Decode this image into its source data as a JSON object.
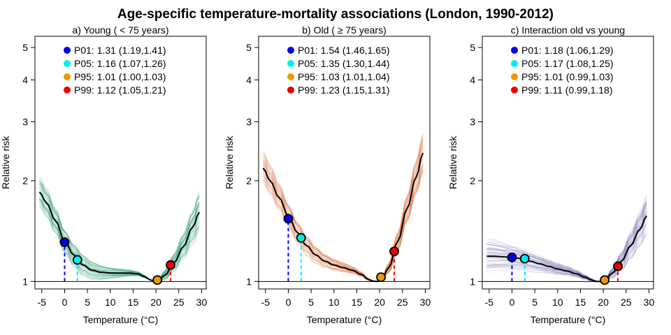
{
  "chart_data": {
    "title": "Age-specific temperature-mortality associations (London, 1990-2012)",
    "xlabel": "Temperature (°C)",
    "ylabel": "Relative risk",
    "x_ticks": [
      -5,
      0,
      5,
      10,
      15,
      20,
      25,
      30
    ],
    "y_ticks": [
      1,
      2,
      3,
      4,
      5
    ],
    "xlim": [
      -6.5,
      31
    ],
    "ylim": [
      0.95,
      5.4
    ],
    "y_scale": "log",
    "reference_line": 1,
    "percentile_colors": {
      "P01": "#0000ee",
      "P05": "#00eeee",
      "P95": "#ee9a00",
      "P99": "#ee0000"
    },
    "panels": [
      {
        "title": "a) Young ( < 75 years)",
        "type": "line",
        "ensemble_color": "#2e9b6e",
        "x": [
          -5.5,
          -4,
          -2,
          0,
          2,
          4,
          6,
          8,
          10,
          12,
          14,
          16,
          17.5,
          18.5,
          19.5,
          20.5,
          22,
          24,
          26,
          28,
          29.5
        ],
        "y": [
          1.85,
          1.72,
          1.52,
          1.32,
          1.2,
          1.12,
          1.08,
          1.065,
          1.06,
          1.06,
          1.06,
          1.055,
          1.035,
          1.015,
          1.003,
          1.005,
          1.045,
          1.14,
          1.27,
          1.45,
          1.61
        ],
        "points": [
          {
            "label": "P01: 1.31 (1.19,1.41)",
            "x": 0.0,
            "y": 1.31,
            "color": "#0000ee"
          },
          {
            "label": "P05: 1.16 (1.07,1.26)",
            "x": 2.8,
            "y": 1.16,
            "color": "#00eeee"
          },
          {
            "label": "P95: 1.01 (1.00,1.03)",
            "x": 20.3,
            "y": 1.01,
            "color": "#ee9a00"
          },
          {
            "label": "P99: 1.12 (1.05,1.21)",
            "x": 23.2,
            "y": 1.12,
            "color": "#ee0000"
          }
        ]
      },
      {
        "title": "b) Old ( ≥ 75 years)",
        "type": "line",
        "ensemble_color": "#e07a4a",
        "x": [
          -5.5,
          -4,
          -2,
          0,
          2,
          4,
          6,
          8,
          10,
          12,
          14,
          16,
          17.5,
          18.5,
          19.5,
          20.5,
          22,
          24,
          26,
          28,
          29.5
        ],
        "y": [
          2.18,
          2.0,
          1.78,
          1.57,
          1.4,
          1.28,
          1.2,
          1.15,
          1.12,
          1.1,
          1.08,
          1.05,
          1.015,
          1.003,
          1.0,
          1.02,
          1.1,
          1.32,
          1.65,
          2.05,
          2.42
        ],
        "points": [
          {
            "label": "P01: 1.54 (1.46,1.65)",
            "x": 0.0,
            "y": 1.54,
            "color": "#0000ee"
          },
          {
            "label": "P05: 1.35 (1.30,1.44)",
            "x": 2.8,
            "y": 1.35,
            "color": "#00eeee"
          },
          {
            "label": "P95: 1.03 (1.01,1.04)",
            "x": 20.3,
            "y": 1.03,
            "color": "#ee9a00"
          },
          {
            "label": "P99: 1.23 (1.15,1.31)",
            "x": 23.2,
            "y": 1.23,
            "color": "#ee0000"
          }
        ]
      },
      {
        "title": "c) Interaction old vs young",
        "type": "line",
        "ensemble_color": "#7b76b6",
        "x": [
          -5.5,
          -4,
          -2,
          0,
          2,
          4,
          6,
          8,
          10,
          12,
          14,
          16,
          17.5,
          18.5,
          19.5,
          20.5,
          22,
          24,
          26,
          28,
          29.5
        ],
        "y": [
          1.19,
          1.19,
          1.185,
          1.18,
          1.17,
          1.15,
          1.13,
          1.11,
          1.09,
          1.075,
          1.055,
          1.03,
          1.01,
          1.0,
          1.0,
          1.015,
          1.06,
          1.15,
          1.28,
          1.43,
          1.57
        ],
        "points": [
          {
            "label": "P01: 1.18 (1.06,1.29)",
            "x": 0.0,
            "y": 1.18,
            "color": "#0000ee"
          },
          {
            "label": "P05: 1.17 (1.08,1.25)",
            "x": 2.8,
            "y": 1.17,
            "color": "#00eeee"
          },
          {
            "label": "P95: 1.01 (0.99,1.03)",
            "x": 20.3,
            "y": 1.01,
            "color": "#ee9a00"
          },
          {
            "label": "P99: 1.11 (0.99,1.18)",
            "x": 23.2,
            "y": 1.11,
            "color": "#ee0000"
          }
        ]
      }
    ]
  }
}
